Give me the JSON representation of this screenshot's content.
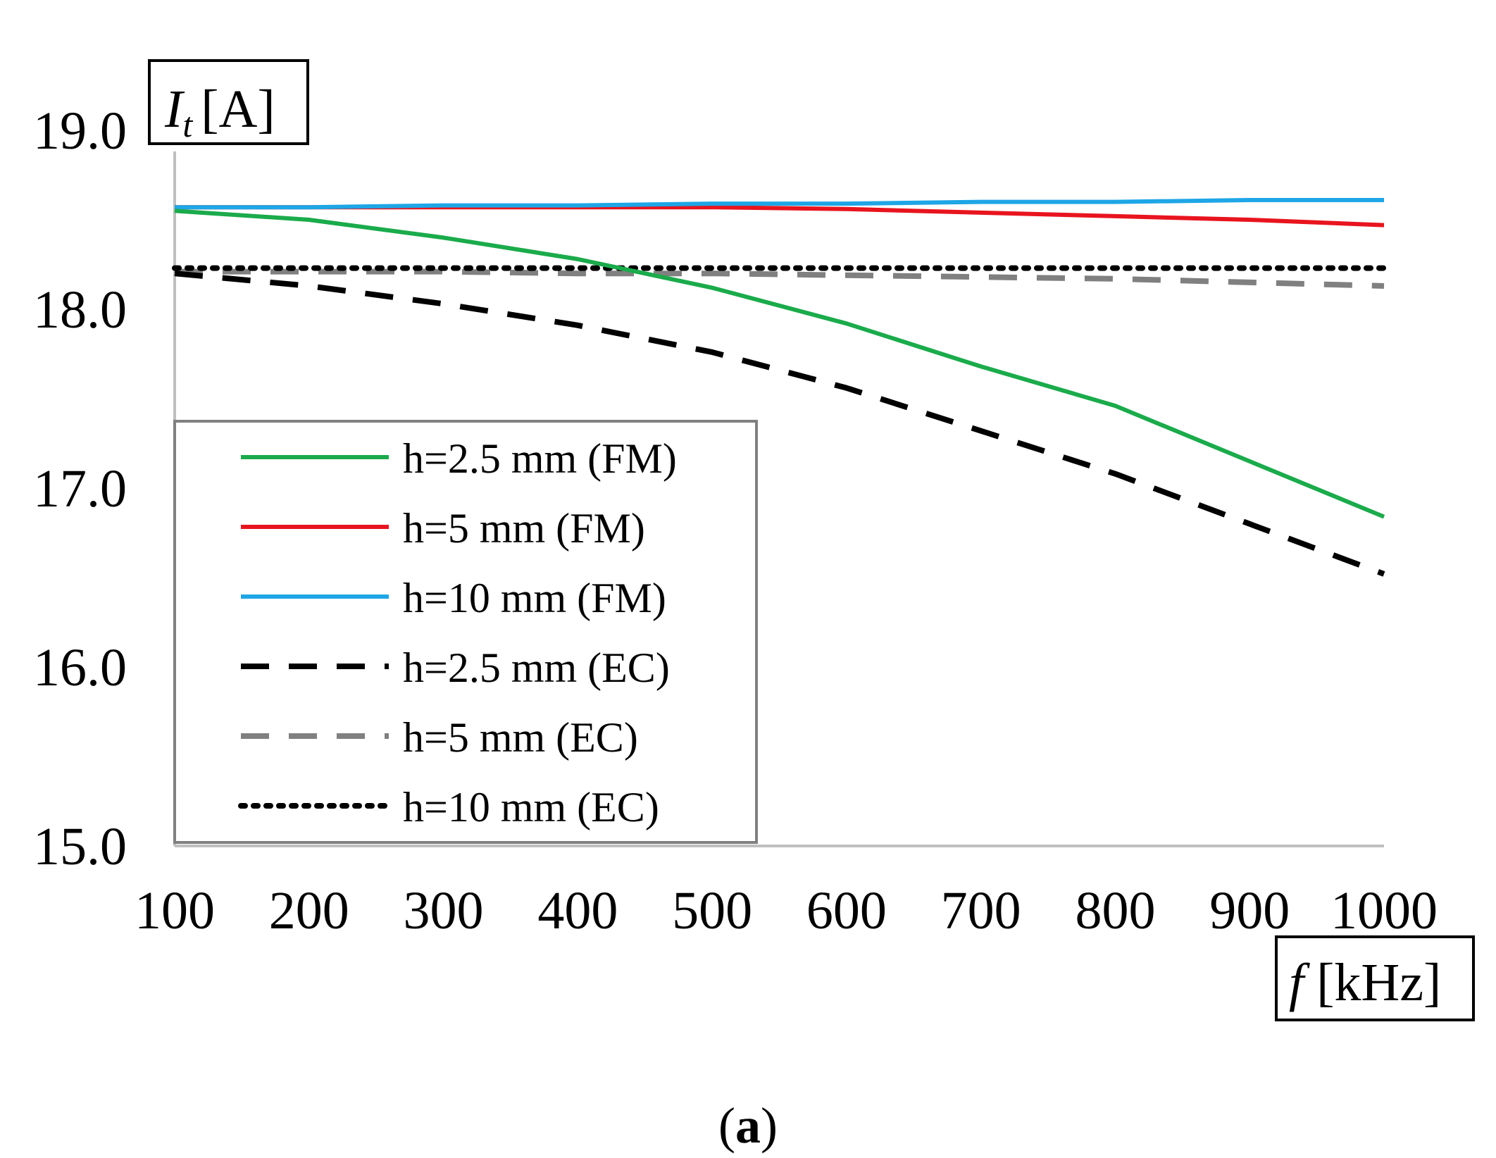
{
  "chart_data": {
    "type": "line",
    "title": "",
    "ylabel_var": "I",
    "ylabel_sub": "t",
    "ylabel_unit": "[A]",
    "xlabel_var": "f",
    "xlabel_unit": "[kHz]",
    "xlim": [
      100,
      1000
    ],
    "ylim": [
      15.0,
      19.0
    ],
    "grid": false,
    "legend_position": "lower-left",
    "x": [
      100,
      200,
      300,
      400,
      500,
      600,
      700,
      800,
      900,
      1000
    ],
    "xticks": [
      "100",
      "200",
      "300",
      "400",
      "500",
      "600",
      "700",
      "800",
      "900",
      "1000"
    ],
    "yticks": [
      "15.0",
      "16.0",
      "17.0",
      "18.0",
      "19.0"
    ],
    "series": [
      {
        "name": "h=2.5 mm (FM)",
        "color": "#1aab4b",
        "dash": "solid",
        "values": [
          18.55,
          18.5,
          18.4,
          18.28,
          18.12,
          17.92,
          17.68,
          17.46,
          17.15,
          16.84
        ]
      },
      {
        "name": "h=5 mm (FM)",
        "color": "#e8141e",
        "dash": "solid",
        "values": [
          18.57,
          18.57,
          18.57,
          18.57,
          18.57,
          18.56,
          18.54,
          18.52,
          18.5,
          18.47
        ]
      },
      {
        "name": "h=10 mm (FM)",
        "color": "#1ea6e6",
        "dash": "solid",
        "values": [
          18.57,
          18.57,
          18.58,
          18.58,
          18.59,
          18.59,
          18.6,
          18.6,
          18.61,
          18.61
        ]
      },
      {
        "name": "h=2.5 mm (EC)",
        "color": "#000000",
        "dash": "dash",
        "values": [
          18.2,
          18.13,
          18.03,
          17.91,
          17.76,
          17.56,
          17.32,
          17.08,
          16.8,
          16.52
        ]
      },
      {
        "name": "h=5 mm (EC)",
        "color": "#808080",
        "dash": "dash",
        "values": [
          18.21,
          18.21,
          18.21,
          18.2,
          18.2,
          18.19,
          18.18,
          18.17,
          18.15,
          18.13
        ]
      },
      {
        "name": "h=10 mm (EC)",
        "color": "#000000",
        "dash": "dot",
        "values": [
          18.23,
          18.23,
          18.23,
          18.23,
          18.23,
          18.23,
          18.23,
          18.23,
          18.23,
          18.23
        ]
      }
    ],
    "caption_open": "(",
    "caption_letter": "a",
    "caption_close": ")"
  }
}
